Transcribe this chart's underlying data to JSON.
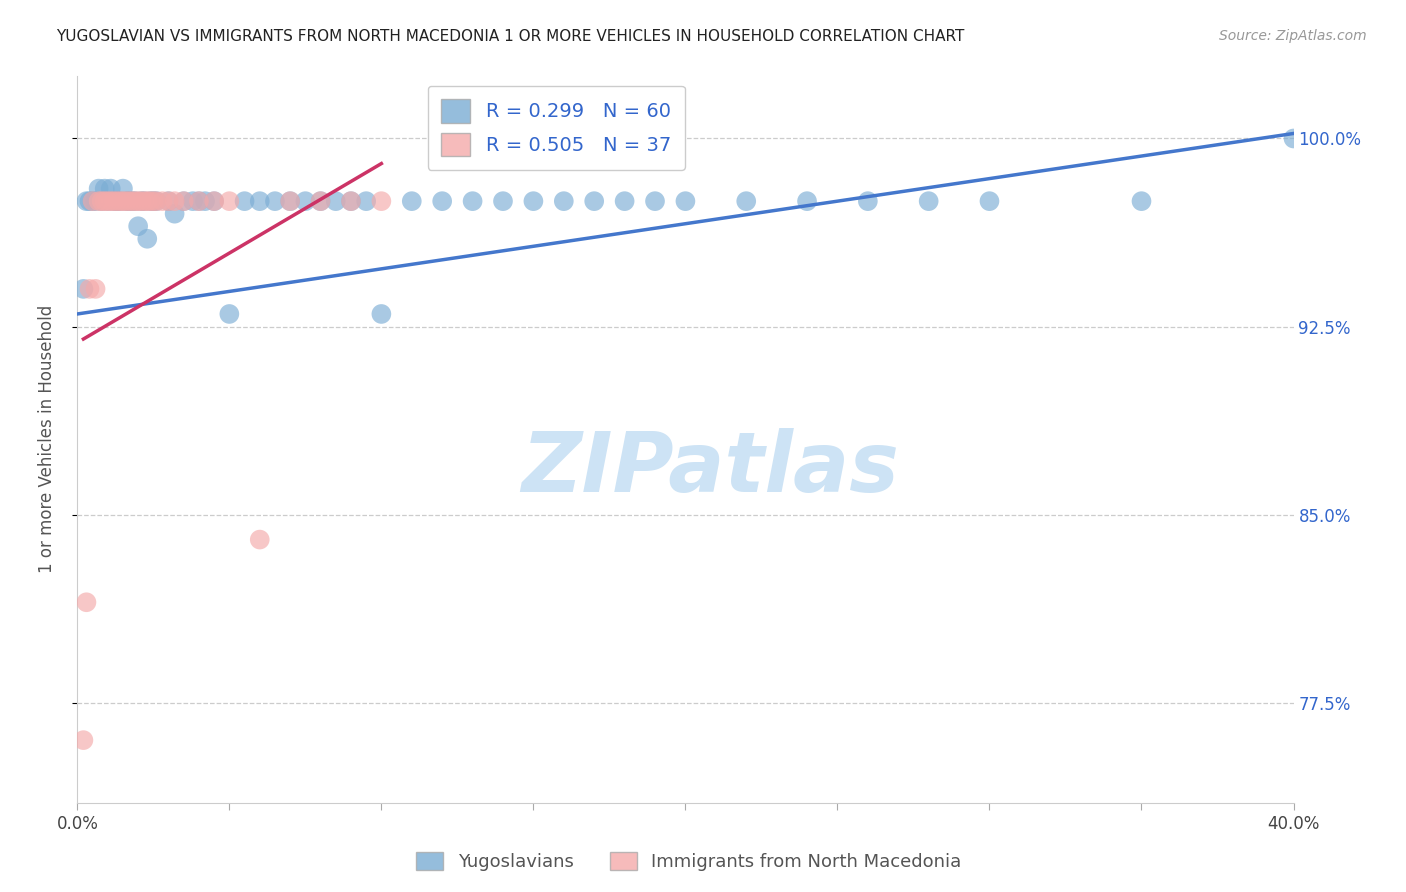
{
  "title": "YUGOSLAVIAN VS IMMIGRANTS FROM NORTH MACEDONIA 1 OR MORE VEHICLES IN HOUSEHOLD CORRELATION CHART",
  "source": "Source: ZipAtlas.com",
  "ylabel": "1 or more Vehicles in Household",
  "xlim": [
    0.0,
    0.4
  ],
  "ylim": [
    0.735,
    1.025
  ],
  "xticks": [
    0.0,
    0.05,
    0.1,
    0.15,
    0.2,
    0.25,
    0.3,
    0.35,
    0.4
  ],
  "xticklabels": [
    "0.0%",
    "",
    "",
    "",
    "",
    "",
    "",
    "",
    "40.0%"
  ],
  "yticks": [
    0.775,
    0.85,
    0.925,
    1.0
  ],
  "yticklabels": [
    "77.5%",
    "85.0%",
    "92.5%",
    "100.0%"
  ],
  "legend_blue_r": "R = 0.299",
  "legend_blue_n": "N = 60",
  "legend_pink_r": "R = 0.505",
  "legend_pink_n": "N = 37",
  "watermark": "ZIPatlas",
  "blue_color": "#7BADD4",
  "pink_color": "#F4AAAA",
  "blue_line_color": "#4477CC",
  "pink_line_color": "#CC3366",
  "blue_points_x": [
    0.002,
    0.003,
    0.004,
    0.005,
    0.006,
    0.007,
    0.008,
    0.009,
    0.01,
    0.011,
    0.012,
    0.013,
    0.014,
    0.015,
    0.016,
    0.017,
    0.018,
    0.019,
    0.02,
    0.021,
    0.022,
    0.023,
    0.024,
    0.025,
    0.026,
    0.03,
    0.032,
    0.035,
    0.038,
    0.04,
    0.042,
    0.045,
    0.05,
    0.055,
    0.06,
    0.065,
    0.07,
    0.075,
    0.08,
    0.085,
    0.09,
    0.095,
    0.1,
    0.11,
    0.12,
    0.13,
    0.14,
    0.15,
    0.16,
    0.17,
    0.18,
    0.19,
    0.2,
    0.22,
    0.24,
    0.26,
    0.28,
    0.3,
    0.35,
    0.4
  ],
  "blue_points_y": [
    0.94,
    0.975,
    0.975,
    0.975,
    0.975,
    0.98,
    0.975,
    0.98,
    0.975,
    0.98,
    0.975,
    0.975,
    0.975,
    0.98,
    0.975,
    0.975,
    0.975,
    0.975,
    0.965,
    0.975,
    0.975,
    0.96,
    0.975,
    0.975,
    0.975,
    0.975,
    0.97,
    0.975,
    0.975,
    0.975,
    0.975,
    0.975,
    0.93,
    0.975,
    0.975,
    0.975,
    0.975,
    0.975,
    0.975,
    0.975,
    0.975,
    0.975,
    0.93,
    0.975,
    0.975,
    0.975,
    0.975,
    0.975,
    0.975,
    0.975,
    0.975,
    0.975,
    0.975,
    0.975,
    0.975,
    0.975,
    0.975,
    0.975,
    0.975,
    1.0
  ],
  "pink_points_x": [
    0.002,
    0.003,
    0.004,
    0.005,
    0.006,
    0.007,
    0.008,
    0.009,
    0.01,
    0.011,
    0.012,
    0.013,
    0.014,
    0.015,
    0.016,
    0.017,
    0.018,
    0.019,
    0.02,
    0.021,
    0.022,
    0.023,
    0.024,
    0.025,
    0.026,
    0.028,
    0.03,
    0.032,
    0.035,
    0.04,
    0.045,
    0.05,
    0.06,
    0.07,
    0.08,
    0.09,
    0.1
  ],
  "pink_points_y": [
    0.76,
    0.815,
    0.94,
    0.975,
    0.94,
    0.975,
    0.975,
    0.975,
    0.975,
    0.975,
    0.975,
    0.975,
    0.975,
    0.975,
    0.975,
    0.975,
    0.975,
    0.975,
    0.975,
    0.975,
    0.975,
    0.975,
    0.975,
    0.975,
    0.975,
    0.975,
    0.975,
    0.975,
    0.975,
    0.975,
    0.975,
    0.975,
    0.84,
    0.975,
    0.975,
    0.975,
    0.975
  ],
  "blue_trend_x": [
    0.0,
    0.4
  ],
  "blue_trend_y": [
    0.93,
    1.002
  ],
  "pink_trend_x": [
    0.002,
    0.1
  ],
  "pink_trend_y": [
    0.92,
    0.99
  ]
}
